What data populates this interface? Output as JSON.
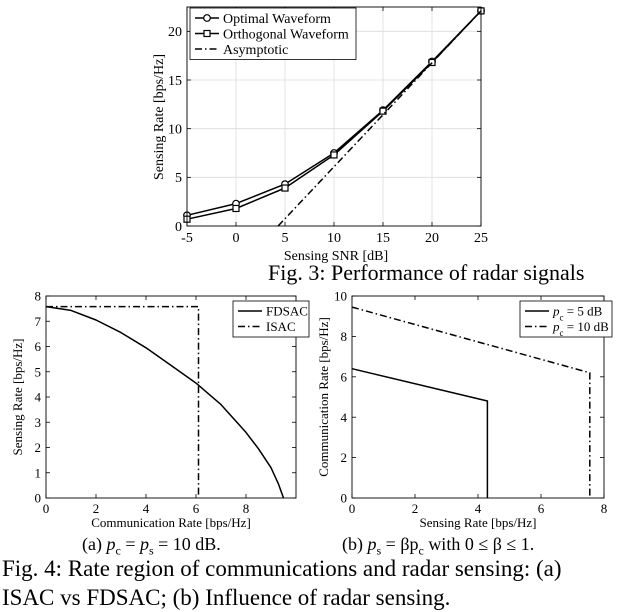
{
  "captions": {
    "fig3_partial": "Fig. 3: Performance of radar signals",
    "sub_a_prefix": "(a) ",
    "sub_a_math": "p",
    "sub_a_sub1": "c",
    "sub_a_eq": " = ",
    "sub_a_sub2": "s",
    "sub_a_suffix": " = 10 dB.",
    "sub_b_prefix": "(b) ",
    "sub_b_sub1": "s",
    "sub_b_mid": " = βp",
    "sub_b_sub2": "c",
    "sub_b_suffix": " with 0 ≤ β ≤ 1.",
    "fig4_line1": "Fig. 4: Rate region of communications and radar sensing: (a)",
    "fig4_line2": "ISAC vs FDSAC; (b) Influence of radar sensing."
  },
  "chart_data": [
    {
      "type": "line",
      "xlabel": "Sensing SNR [dB]",
      "ylabel": "Sensing Rate [bps/Hz]",
      "xlim": [
        -5,
        25
      ],
      "ylim": [
        0,
        22.5
      ],
      "xticks": [
        -5,
        0,
        5,
        10,
        15,
        20,
        25
      ],
      "yticks": [
        0,
        5,
        10,
        15,
        20
      ],
      "grid": true,
      "legend": "top-left",
      "series": [
        {
          "name": "Optimal Waveform",
          "style": "solid-circle",
          "x": [
            -5,
            0,
            5,
            10,
            15,
            20,
            25
          ],
          "y": [
            1.1,
            2.3,
            4.3,
            7.5,
            11.9,
            16.9,
            22.1
          ]
        },
        {
          "name": "Orthogonal Waveform",
          "style": "solid-square",
          "x": [
            -5,
            0,
            5,
            10,
            15,
            20,
            25
          ],
          "y": [
            0.7,
            1.8,
            3.9,
            7.3,
            11.8,
            16.8,
            22.1
          ]
        },
        {
          "name": "Asymptotic",
          "style": "dashdot",
          "x": [
            4.3,
            25
          ],
          "y": [
            0,
            22.1
          ]
        }
      ]
    },
    {
      "type": "line",
      "xlabel": "Communication Rate [bps/Hz]",
      "ylabel": "Sensing Rate [bps/Hz]",
      "xlim": [
        0,
        10
      ],
      "ylim": [
        0,
        8
      ],
      "xticks": [
        0,
        2,
        4,
        6,
        8
      ],
      "yticks": [
        0,
        1,
        2,
        3,
        4,
        5,
        6,
        7,
        8
      ],
      "grid": false,
      "legend": "top-right",
      "series": [
        {
          "name": "FDSAC",
          "style": "solid",
          "x": [
            0,
            1,
            2,
            3,
            4,
            5,
            6,
            7,
            8,
            8.5,
            9,
            9.3,
            9.5
          ],
          "y": [
            7.58,
            7.43,
            7.05,
            6.55,
            5.95,
            5.25,
            4.55,
            3.7,
            2.6,
            1.95,
            1.2,
            0.55,
            0
          ]
        },
        {
          "name": "ISAC",
          "style": "dashdot",
          "x": [
            0,
            6.1,
            6.1
          ],
          "y": [
            7.58,
            7.58,
            0
          ]
        }
      ]
    },
    {
      "type": "line",
      "xlabel": "Sensing Rate [bps/Hz]",
      "ylabel": "Communication Rate [bps/Hz]",
      "xlim": [
        0,
        8
      ],
      "ylim": [
        0,
        10
      ],
      "xticks": [
        0,
        2,
        4,
        6,
        8
      ],
      "yticks": [
        0,
        2,
        4,
        6,
        8,
        10
      ],
      "grid": false,
      "legend": "top-right",
      "series": [
        {
          "name": "p_c = 5 dB",
          "style": "solid",
          "x": [
            0,
            4.3,
            4.3
          ],
          "y": [
            6.4,
            4.8,
            0
          ]
        },
        {
          "name": "p_c = 10 dB",
          "style": "dashdot",
          "x": [
            0,
            7.55,
            7.55
          ],
          "y": [
            9.45,
            6.2,
            0
          ]
        }
      ]
    }
  ]
}
